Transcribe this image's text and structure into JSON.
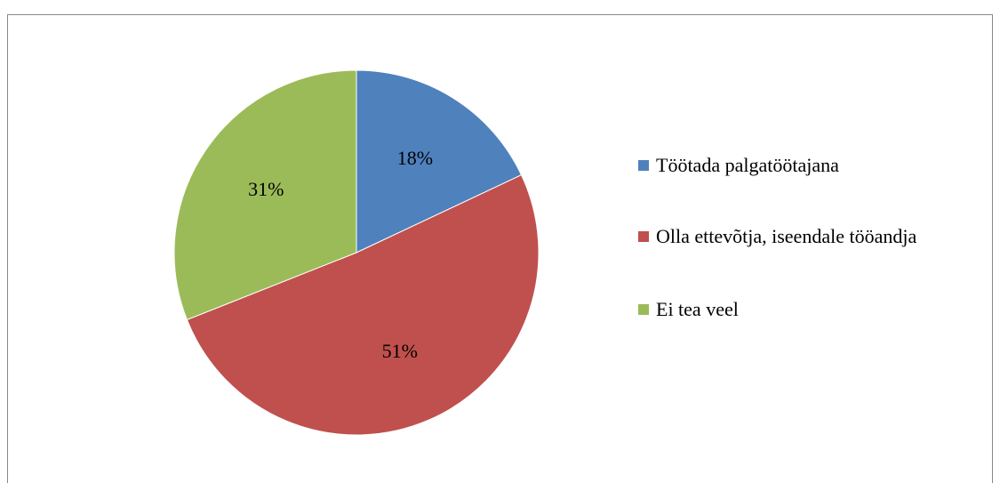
{
  "chart_data": {
    "type": "pie",
    "categories": [
      "Töötada palgatöötajana",
      "Olla ettevõtja, iseendale tööandja",
      "Ei tea veel"
    ],
    "values": [
      18,
      51,
      31
    ],
    "value_labels": [
      "18%",
      "51%",
      "31%"
    ],
    "colors": [
      "#4f81bd",
      "#c0504d",
      "#9bbb59"
    ],
    "legend": "right"
  }
}
